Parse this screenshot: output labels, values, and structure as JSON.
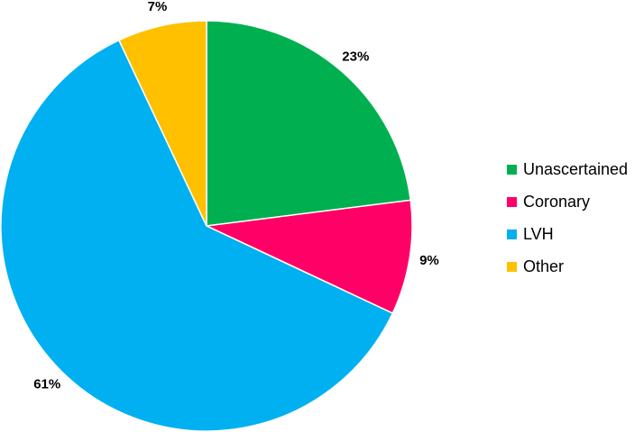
{
  "chart_data": {
    "type": "pie",
    "categories": [
      "Unascertained",
      "Coronary",
      "LVH",
      "Other"
    ],
    "values": [
      23,
      9,
      61,
      7
    ],
    "value_labels": [
      "23%",
      "9%",
      "61%",
      "7%"
    ],
    "colors": [
      "#00b050",
      "#ff0066",
      "#00b0f0",
      "#ffc000"
    ],
    "legend": "right"
  }
}
